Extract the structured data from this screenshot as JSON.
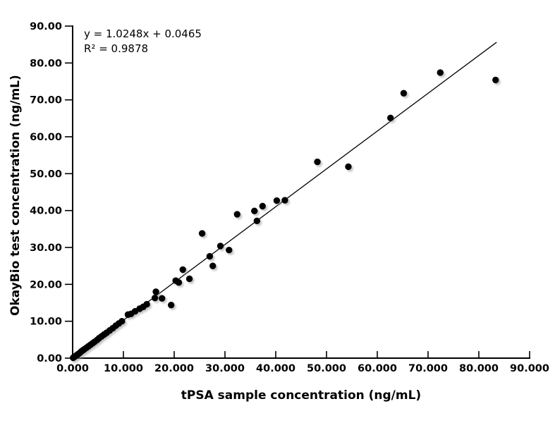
{
  "chart_data": {
    "type": "scatter",
    "title": "",
    "xlabel": "tPSA sample concentration (ng/mL)",
    "ylabel": "OkayBio test concentration (ng/mL)",
    "equation": {
      "line1": "y = 1.0248x + 0.0465",
      "line2": "R² = 0.9878"
    },
    "x_axis": {
      "min": 0,
      "max": 90,
      "step": 10,
      "decimals": 3
    },
    "y_axis": {
      "min": 0,
      "max": 90,
      "step": 10,
      "decimals": 2
    },
    "trendline": {
      "slope": 1.0248,
      "intercept": 0.0465,
      "x_start": 0,
      "x_end": 83.5
    },
    "marker_color": "#000000",
    "shadow_color": "#999999",
    "line_color": "#000000",
    "axis_color": "#000000",
    "legend": "none",
    "grid": "off",
    "points": [
      [
        0.1,
        0.1
      ],
      [
        0.2,
        0.2
      ],
      [
        0.3,
        0.3
      ],
      [
        0.5,
        0.5
      ],
      [
        0.7,
        0.7
      ],
      [
        0.9,
        0.9
      ],
      [
        1.1,
        1.1
      ],
      [
        1.4,
        1.4
      ],
      [
        1.7,
        1.8
      ],
      [
        2.0,
        2.1
      ],
      [
        2.3,
        2.4
      ],
      [
        2.7,
        2.8
      ],
      [
        3.1,
        3.2
      ],
      [
        3.5,
        3.6
      ],
      [
        3.9,
        4.0
      ],
      [
        4.3,
        4.4
      ],
      [
        4.8,
        4.9
      ],
      [
        5.2,
        5.4
      ],
      [
        5.7,
        5.9
      ],
      [
        6.2,
        6.4
      ],
      [
        6.7,
        6.9
      ],
      [
        7.3,
        7.5
      ],
      [
        7.9,
        8.1
      ],
      [
        8.5,
        8.8
      ],
      [
        9.1,
        9.4
      ],
      [
        9.7,
        10.0
      ],
      [
        10.9,
        11.8
      ],
      [
        11.5,
        12.0
      ],
      [
        12.3,
        12.7
      ],
      [
        13.2,
        13.4
      ],
      [
        13.9,
        13.9
      ],
      [
        14.6,
        14.6
      ],
      [
        16.2,
        16.3
      ],
      [
        16.4,
        18.0
      ],
      [
        17.6,
        16.2
      ],
      [
        19.4,
        14.4
      ],
      [
        20.3,
        21.0
      ],
      [
        20.9,
        20.5
      ],
      [
        21.7,
        24.0
      ],
      [
        23.0,
        21.5
      ],
      [
        25.5,
        33.8
      ],
      [
        27.0,
        27.6
      ],
      [
        27.6,
        25.0
      ],
      [
        29.1,
        30.4
      ],
      [
        30.8,
        29.3
      ],
      [
        32.4,
        39.0
      ],
      [
        35.8,
        39.9
      ],
      [
        36.3,
        37.2
      ],
      [
        37.4,
        41.2
      ],
      [
        40.2,
        42.7
      ],
      [
        41.8,
        42.8
      ],
      [
        48.2,
        53.2
      ],
      [
        54.3,
        51.9
      ],
      [
        62.6,
        65.1
      ],
      [
        65.2,
        71.8
      ],
      [
        72.4,
        77.4
      ],
      [
        83.3,
        75.4
      ]
    ]
  }
}
